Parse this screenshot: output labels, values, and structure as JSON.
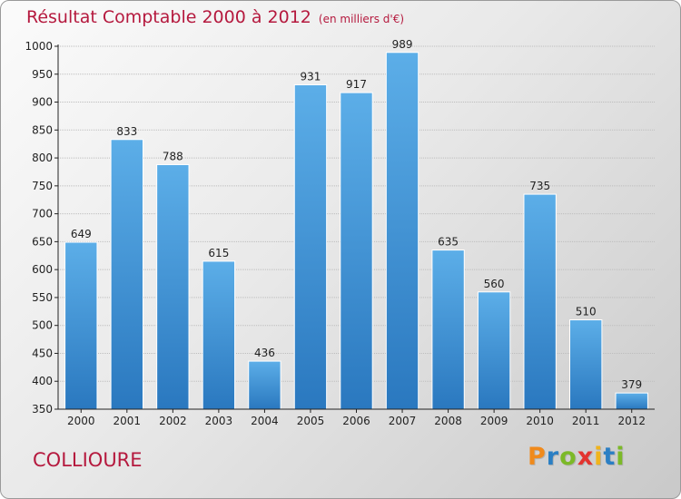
{
  "header": {
    "title": "Résultat Comptable 2000 à 2012",
    "subtitle": "(en milliers d'€)"
  },
  "footer": {
    "city": "COLLIOURE",
    "brand": [
      "P",
      "r",
      "o",
      "x",
      "i",
      "t",
      "i"
    ]
  },
  "colors": {
    "title": "#b5193e",
    "bar_top": "#5caee8",
    "bar_bottom": "#2a78bf",
    "axis": "#222222",
    "grid": "#bdbdbd",
    "brand": [
      "#f08a1c",
      "#2b7fc4",
      "#7cb928",
      "#e3342f",
      "#f0b41c",
      "#2b7fc4",
      "#7cb928"
    ]
  },
  "chart_data": {
    "type": "bar",
    "title": "Résultat Comptable 2000 à 2012",
    "subtitle": "(en milliers d'€)",
    "xlabel": "",
    "ylabel": "",
    "categories": [
      "2000",
      "2001",
      "2002",
      "2003",
      "2004",
      "2005",
      "2006",
      "2007",
      "2008",
      "2009",
      "2010",
      "2011",
      "2012"
    ],
    "values": [
      649,
      833,
      788,
      615,
      436,
      931,
      917,
      989,
      635,
      560,
      735,
      510,
      379
    ],
    "ylim": [
      350,
      1000
    ],
    "yticks": [
      350,
      400,
      450,
      500,
      550,
      600,
      650,
      700,
      750,
      800,
      850,
      900,
      950,
      1000
    ],
    "grid": true,
    "data_labels": true
  }
}
